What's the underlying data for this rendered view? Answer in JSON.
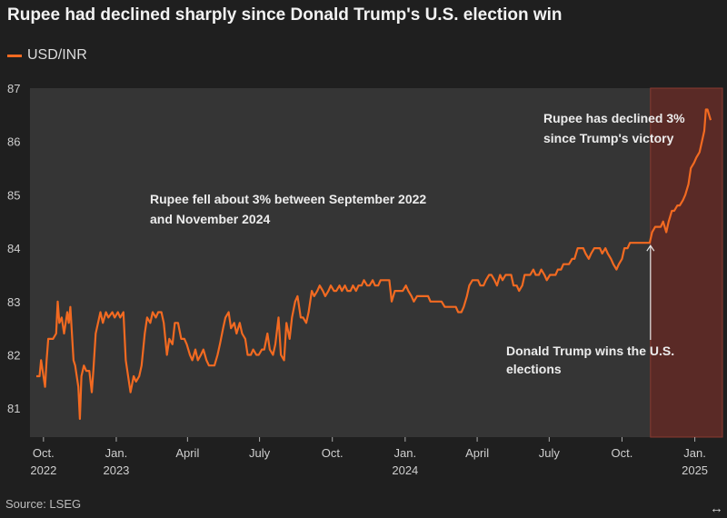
{
  "title": "Rupee had declined sharply since Donald Trump's U.S. election win",
  "legend": {
    "label": "USD/INR",
    "color": "#f26a21"
  },
  "source": "Source: LSEG",
  "icons": {
    "expand": "expand-horizontal-icon"
  },
  "colors": {
    "background": "#1f1f1f",
    "plot_background": "#353535",
    "line": "#f26a21",
    "highlight": "#5a2a26",
    "text": "#e8e8e8"
  },
  "chart_data": {
    "type": "line",
    "title": "Rupee had declined sharply since Donald Trump's U.S. election win",
    "xlabel": "",
    "ylabel": "",
    "ylim": [
      80.7,
      87
    ],
    "y_ticks": [
      81,
      82,
      83,
      84,
      85,
      86,
      87
    ],
    "x_range": [
      "2022-09-22",
      "2025-01-21"
    ],
    "x_ticks": [
      {
        "date": "2022-10-01",
        "label": "Oct.",
        "sub": "2022"
      },
      {
        "date": "2023-01-01",
        "label": "Jan.",
        "sub": "2023"
      },
      {
        "date": "2023-04-01",
        "label": "April",
        "sub": ""
      },
      {
        "date": "2023-07-01",
        "label": "July",
        "sub": ""
      },
      {
        "date": "2023-10-01",
        "label": "Oct.",
        "sub": ""
      },
      {
        "date": "2024-01-01",
        "label": "Jan.",
        "sub": "2024"
      },
      {
        "date": "2024-04-01",
        "label": "April",
        "sub": ""
      },
      {
        "date": "2024-07-01",
        "label": "July",
        "sub": ""
      },
      {
        "date": "2024-10-01",
        "label": "Oct.",
        "sub": ""
      },
      {
        "date": "2025-01-01",
        "label": "Jan.",
        "sub": "2025"
      }
    ],
    "highlight_start": "2024-11-06",
    "series": [
      {
        "name": "USD/INR",
        "points": [
          [
            "2022-09-22",
            81.6
          ],
          [
            "2022-09-26",
            81.6
          ],
          [
            "2022-09-28",
            81.9
          ],
          [
            "2022-10-03",
            81.4
          ],
          [
            "2022-10-05",
            81.9
          ],
          [
            "2022-10-07",
            82.3
          ],
          [
            "2022-10-10",
            82.3
          ],
          [
            "2022-10-13",
            82.3
          ],
          [
            "2022-10-17",
            82.4
          ],
          [
            "2022-10-19",
            83.0
          ],
          [
            "2022-10-21",
            82.6
          ],
          [
            "2022-10-24",
            82.7
          ],
          [
            "2022-10-27",
            82.4
          ],
          [
            "2022-10-31",
            82.8
          ],
          [
            "2022-11-02",
            82.6
          ],
          [
            "2022-11-04",
            82.9
          ],
          [
            "2022-11-08",
            81.9
          ],
          [
            "2022-11-10",
            81.8
          ],
          [
            "2022-11-14",
            81.4
          ],
          [
            "2022-11-16",
            80.8
          ],
          [
            "2022-11-18",
            81.6
          ],
          [
            "2022-11-21",
            81.8
          ],
          [
            "2022-11-24",
            81.7
          ],
          [
            "2022-11-28",
            81.7
          ],
          [
            "2022-12-01",
            81.3
          ],
          [
            "2022-12-03",
            81.7
          ],
          [
            "2022-12-06",
            82.4
          ],
          [
            "2022-12-09",
            82.6
          ],
          [
            "2022-12-12",
            82.8
          ],
          [
            "2022-12-15",
            82.6
          ],
          [
            "2022-12-19",
            82.8
          ],
          [
            "2022-12-22",
            82.7
          ],
          [
            "2022-12-27",
            82.8
          ],
          [
            "2022-12-30",
            82.7
          ],
          [
            "2023-01-03",
            82.8
          ],
          [
            "2023-01-06",
            82.7
          ],
          [
            "2023-01-10",
            82.8
          ],
          [
            "2023-01-13",
            81.9
          ],
          [
            "2023-01-16",
            81.6
          ],
          [
            "2023-01-19",
            81.3
          ],
          [
            "2023-01-23",
            81.6
          ],
          [
            "2023-01-26",
            81.5
          ],
          [
            "2023-01-30",
            81.6
          ],
          [
            "2023-02-02",
            81.8
          ],
          [
            "2023-02-06",
            82.4
          ],
          [
            "2023-02-09",
            82.7
          ],
          [
            "2023-02-13",
            82.6
          ],
          [
            "2023-02-16",
            82.8
          ],
          [
            "2023-02-20",
            82.7
          ],
          [
            "2023-02-23",
            82.8
          ],
          [
            "2023-02-27",
            82.8
          ],
          [
            "2023-03-02",
            82.6
          ],
          [
            "2023-03-06",
            82.0
          ],
          [
            "2023-03-09",
            82.3
          ],
          [
            "2023-03-13",
            82.2
          ],
          [
            "2023-03-16",
            82.6
          ],
          [
            "2023-03-20",
            82.6
          ],
          [
            "2023-03-24",
            82.3
          ],
          [
            "2023-03-28",
            82.3
          ],
          [
            "2023-03-31",
            82.2
          ],
          [
            "2023-04-04",
            82.0
          ],
          [
            "2023-04-07",
            81.9
          ],
          [
            "2023-04-11",
            82.1
          ],
          [
            "2023-04-14",
            81.9
          ],
          [
            "2023-04-18",
            82.0
          ],
          [
            "2023-04-21",
            82.1
          ],
          [
            "2023-04-25",
            81.9
          ],
          [
            "2023-04-28",
            81.8
          ],
          [
            "2023-05-02",
            81.8
          ],
          [
            "2023-05-05",
            81.8
          ],
          [
            "2023-05-09",
            82.0
          ],
          [
            "2023-05-12",
            82.2
          ],
          [
            "2023-05-16",
            82.5
          ],
          [
            "2023-05-19",
            82.7
          ],
          [
            "2023-05-23",
            82.8
          ],
          [
            "2023-05-26",
            82.5
          ],
          [
            "2023-05-30",
            82.6
          ],
          [
            "2023-06-02",
            82.4
          ],
          [
            "2023-06-06",
            82.6
          ],
          [
            "2023-06-09",
            82.4
          ],
          [
            "2023-06-13",
            82.3
          ],
          [
            "2023-06-16",
            82.0
          ],
          [
            "2023-06-20",
            82.0
          ],
          [
            "2023-06-23",
            82.1
          ],
          [
            "2023-06-27",
            82.0
          ],
          [
            "2023-06-30",
            82.0
          ],
          [
            "2023-07-04",
            82.1
          ],
          [
            "2023-07-07",
            82.1
          ],
          [
            "2023-07-11",
            82.4
          ],
          [
            "2023-07-14",
            82.1
          ],
          [
            "2023-07-18",
            82.0
          ],
          [
            "2023-07-21",
            82.2
          ],
          [
            "2023-07-25",
            82.7
          ],
          [
            "2023-07-28",
            82.0
          ],
          [
            "2023-08-01",
            81.9
          ],
          [
            "2023-08-04",
            82.6
          ],
          [
            "2023-08-08",
            82.3
          ],
          [
            "2023-08-11",
            82.7
          ],
          [
            "2023-08-15",
            83.0
          ],
          [
            "2023-08-18",
            83.1
          ],
          [
            "2023-08-22",
            82.7
          ],
          [
            "2023-08-25",
            82.7
          ],
          [
            "2023-08-29",
            82.6
          ],
          [
            "2023-09-01",
            82.8
          ],
          [
            "2023-09-05",
            83.2
          ],
          [
            "2023-09-08",
            83.1
          ],
          [
            "2023-09-12",
            83.2
          ],
          [
            "2023-09-15",
            83.3
          ],
          [
            "2023-09-19",
            83.2
          ],
          [
            "2023-09-22",
            83.1
          ],
          [
            "2023-09-26",
            83.2
          ],
          [
            "2023-09-29",
            83.3
          ],
          [
            "2023-10-03",
            83.2
          ],
          [
            "2023-10-06",
            83.2
          ],
          [
            "2023-10-10",
            83.3
          ],
          [
            "2023-10-13",
            83.2
          ],
          [
            "2023-10-17",
            83.3
          ],
          [
            "2023-10-20",
            83.2
          ],
          [
            "2023-10-24",
            83.2
          ],
          [
            "2023-10-27",
            83.3
          ],
          [
            "2023-10-31",
            83.2
          ],
          [
            "2023-11-03",
            83.3
          ],
          [
            "2023-11-07",
            83.3
          ],
          [
            "2023-11-10",
            83.4
          ],
          [
            "2023-11-14",
            83.3
          ],
          [
            "2023-11-17",
            83.3
          ],
          [
            "2023-11-21",
            83.4
          ],
          [
            "2023-11-24",
            83.3
          ],
          [
            "2023-11-28",
            83.3
          ],
          [
            "2023-12-01",
            83.4
          ],
          [
            "2023-12-05",
            83.4
          ],
          [
            "2023-12-08",
            83.4
          ],
          [
            "2023-12-12",
            83.4
          ],
          [
            "2023-12-15",
            83.0
          ],
          [
            "2023-12-19",
            83.2
          ],
          [
            "2023-12-22",
            83.2
          ],
          [
            "2023-12-26",
            83.2
          ],
          [
            "2023-12-29",
            83.2
          ],
          [
            "2024-01-02",
            83.3
          ],
          [
            "2024-01-05",
            83.2
          ],
          [
            "2024-01-09",
            83.1
          ],
          [
            "2024-01-12",
            83.0
          ],
          [
            "2024-01-16",
            83.1
          ],
          [
            "2024-01-19",
            83.1
          ],
          [
            "2024-01-23",
            83.1
          ],
          [
            "2024-01-26",
            83.1
          ],
          [
            "2024-01-30",
            83.1
          ],
          [
            "2024-02-02",
            83.0
          ],
          [
            "2024-02-06",
            83.0
          ],
          [
            "2024-02-09",
            83.0
          ],
          [
            "2024-02-13",
            83.0
          ],
          [
            "2024-02-16",
            83.0
          ],
          [
            "2024-02-20",
            82.9
          ],
          [
            "2024-02-23",
            82.9
          ],
          [
            "2024-02-27",
            82.9
          ],
          [
            "2024-03-01",
            82.9
          ],
          [
            "2024-03-05",
            82.9
          ],
          [
            "2024-03-08",
            82.8
          ],
          [
            "2024-03-12",
            82.8
          ],
          [
            "2024-03-15",
            82.9
          ],
          [
            "2024-03-19",
            83.1
          ],
          [
            "2024-03-22",
            83.3
          ],
          [
            "2024-03-26",
            83.4
          ],
          [
            "2024-03-29",
            83.4
          ],
          [
            "2024-04-02",
            83.4
          ],
          [
            "2024-04-05",
            83.3
          ],
          [
            "2024-04-09",
            83.3
          ],
          [
            "2024-04-12",
            83.4
          ],
          [
            "2024-04-16",
            83.5
          ],
          [
            "2024-04-19",
            83.5
          ],
          [
            "2024-04-23",
            83.4
          ],
          [
            "2024-04-26",
            83.3
          ],
          [
            "2024-04-30",
            83.5
          ],
          [
            "2024-05-03",
            83.4
          ],
          [
            "2024-05-07",
            83.5
          ],
          [
            "2024-05-10",
            83.5
          ],
          [
            "2024-05-14",
            83.5
          ],
          [
            "2024-05-17",
            83.3
          ],
          [
            "2024-05-21",
            83.3
          ],
          [
            "2024-05-24",
            83.2
          ],
          [
            "2024-05-28",
            83.3
          ],
          [
            "2024-05-31",
            83.5
          ],
          [
            "2024-06-04",
            83.5
          ],
          [
            "2024-06-07",
            83.5
          ],
          [
            "2024-06-11",
            83.6
          ],
          [
            "2024-06-14",
            83.5
          ],
          [
            "2024-06-18",
            83.5
          ],
          [
            "2024-06-21",
            83.6
          ],
          [
            "2024-06-25",
            83.5
          ],
          [
            "2024-06-28",
            83.4
          ],
          [
            "2024-07-02",
            83.5
          ],
          [
            "2024-07-05",
            83.5
          ],
          [
            "2024-07-09",
            83.5
          ],
          [
            "2024-07-12",
            83.6
          ],
          [
            "2024-07-16",
            83.6
          ],
          [
            "2024-07-19",
            83.7
          ],
          [
            "2024-07-23",
            83.7
          ],
          [
            "2024-07-26",
            83.7
          ],
          [
            "2024-07-30",
            83.8
          ],
          [
            "2024-08-02",
            83.8
          ],
          [
            "2024-08-06",
            84.0
          ],
          [
            "2024-08-09",
            84.0
          ],
          [
            "2024-08-13",
            84.0
          ],
          [
            "2024-08-16",
            83.9
          ],
          [
            "2024-08-20",
            83.8
          ],
          [
            "2024-08-23",
            83.9
          ],
          [
            "2024-08-27",
            84.0
          ],
          [
            "2024-08-30",
            84.0
          ],
          [
            "2024-09-03",
            84.0
          ],
          [
            "2024-09-06",
            83.9
          ],
          [
            "2024-09-10",
            84.0
          ],
          [
            "2024-09-13",
            83.9
          ],
          [
            "2024-09-17",
            83.8
          ],
          [
            "2024-09-20",
            83.7
          ],
          [
            "2024-09-24",
            83.6
          ],
          [
            "2024-09-27",
            83.7
          ],
          [
            "2024-10-01",
            83.8
          ],
          [
            "2024-10-04",
            84.0
          ],
          [
            "2024-10-08",
            84.0
          ],
          [
            "2024-10-11",
            84.1
          ],
          [
            "2024-10-15",
            84.1
          ],
          [
            "2024-10-18",
            84.1
          ],
          [
            "2024-10-22",
            84.1
          ],
          [
            "2024-10-25",
            84.1
          ],
          [
            "2024-10-29",
            84.1
          ],
          [
            "2024-11-01",
            84.1
          ],
          [
            "2024-11-05",
            84.1
          ],
          [
            "2024-11-08",
            84.3
          ],
          [
            "2024-11-12",
            84.4
          ],
          [
            "2024-11-15",
            84.4
          ],
          [
            "2024-11-19",
            84.4
          ],
          [
            "2024-11-22",
            84.5
          ],
          [
            "2024-11-26",
            84.3
          ],
          [
            "2024-11-29",
            84.5
          ],
          [
            "2024-12-03",
            84.7
          ],
          [
            "2024-12-06",
            84.7
          ],
          [
            "2024-12-10",
            84.8
          ],
          [
            "2024-12-13",
            84.8
          ],
          [
            "2024-12-17",
            84.9
          ],
          [
            "2024-12-20",
            85.0
          ],
          [
            "2024-12-24",
            85.2
          ],
          [
            "2024-12-27",
            85.5
          ],
          [
            "2024-12-31",
            85.6
          ],
          [
            "2025-01-03",
            85.7
          ],
          [
            "2025-01-07",
            85.8
          ],
          [
            "2025-01-10",
            86.0
          ],
          [
            "2025-01-13",
            86.2
          ],
          [
            "2025-01-15",
            86.6
          ],
          [
            "2025-01-17",
            86.6
          ],
          [
            "2025-01-21",
            86.4
          ]
        ]
      }
    ],
    "annotations": [
      {
        "text_lines": [
          "Rupee fell about 3% between September 2022",
          "and November 2024"
        ]
      },
      {
        "text_lines": [
          "Rupee has declined 3%",
          "since Trump's victory"
        ]
      },
      {
        "text_lines": [
          "Donald Trump wins the U.S.",
          "elections"
        ],
        "arrow_to_date": "2024-11-06",
        "arrow_to_value": 84.05
      }
    ]
  }
}
